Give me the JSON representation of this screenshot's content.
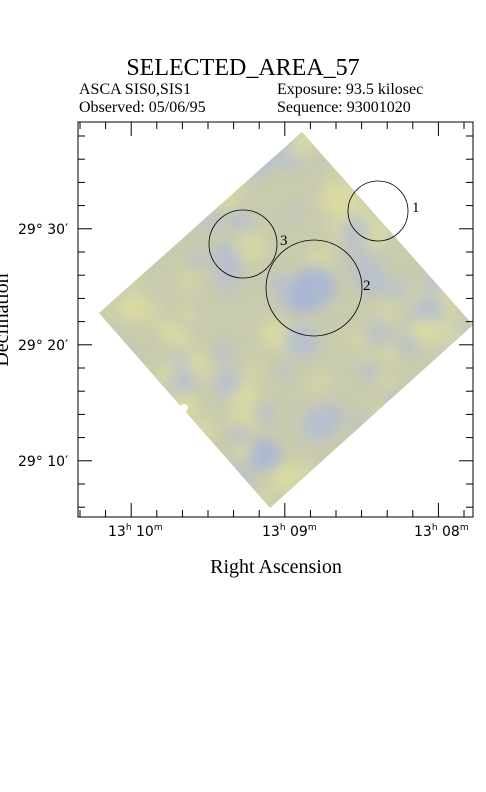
{
  "header": {
    "title": "SELECTED_AREA_57",
    "instrument": "ASCA SIS0,SIS1",
    "exposure": "Exposure: 93.5 kilosec",
    "observed": "Observed: 05/06/95",
    "sequence": "Sequence: 93001020"
  },
  "axes": {
    "xlabel": "Right Ascension",
    "ylabel": "Declination",
    "ra_ticks": [
      {
        "h": "13",
        "m": "10"
      },
      {
        "h": "13",
        "m": "09"
      },
      {
        "h": "13",
        "m": "08"
      }
    ],
    "dec_ticks": [
      "29° 30′",
      "29° 20′",
      "29° 10′"
    ]
  },
  "sources": [
    {
      "label": "1"
    },
    {
      "label": "2"
    },
    {
      "label": "3"
    }
  ],
  "colors": {
    "image_base": "#c9cbae",
    "image_yellow": "#dcdca0",
    "image_blue": "#b6bfd2",
    "frame": "#000000"
  }
}
